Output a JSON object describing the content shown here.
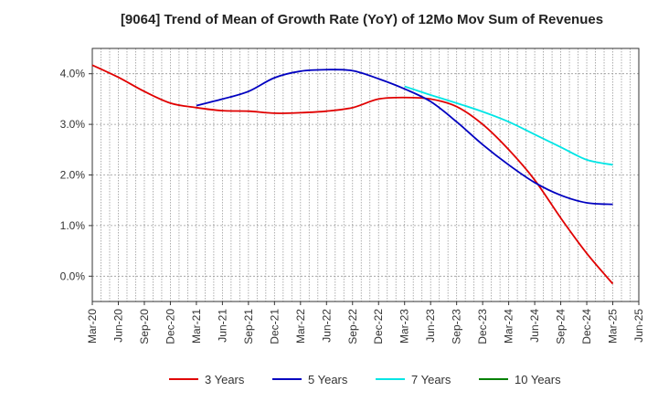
{
  "chart_data": {
    "type": "line",
    "title": "[9064]  Trend of Mean of Growth Rate (YoY) of 12Mo Mov Sum of Revenues",
    "xlabel": "",
    "ylabel": "",
    "ylim": [
      -0.5,
      4.5
    ],
    "yticks": [
      0.0,
      1.0,
      2.0,
      3.0,
      4.0
    ],
    "ytick_labels": [
      "0.0%",
      "1.0%",
      "2.0%",
      "3.0%",
      "4.0%"
    ],
    "xtick_labels": [
      "Mar-20",
      "Jun-20",
      "Sep-20",
      "Dec-20",
      "Mar-21",
      "Jun-21",
      "Sep-21",
      "Dec-21",
      "Mar-22",
      "Jun-22",
      "Sep-22",
      "Dec-22",
      "Mar-23",
      "Jun-23",
      "Sep-23",
      "Dec-23",
      "Mar-24",
      "Jun-24",
      "Sep-24",
      "Dec-24",
      "Mar-25",
      "Jun-25"
    ],
    "grid": true,
    "legend_position": "bottom",
    "series": [
      {
        "name": "3 Years",
        "color": "#e00000",
        "points": [
          [
            0,
            4.17
          ],
          [
            1,
            3.93
          ],
          [
            2,
            3.65
          ],
          [
            3,
            3.42
          ],
          [
            4,
            3.33
          ],
          [
            5,
            3.27
          ],
          [
            6,
            3.26
          ],
          [
            7,
            3.22
          ],
          [
            8,
            3.23
          ],
          [
            9,
            3.26
          ],
          [
            10,
            3.33
          ],
          [
            11,
            3.5
          ],
          [
            12,
            3.53
          ],
          [
            13,
            3.5
          ],
          [
            14,
            3.35
          ],
          [
            15,
            3.0
          ],
          [
            16,
            2.5
          ],
          [
            17,
            1.9
          ],
          [
            18,
            1.15
          ],
          [
            19,
            0.45
          ],
          [
            20,
            -0.15
          ]
        ]
      },
      {
        "name": "5 Years",
        "color": "#0000c0",
        "points": [
          [
            4,
            3.37
          ],
          [
            5,
            3.5
          ],
          [
            6,
            3.65
          ],
          [
            7,
            3.92
          ],
          [
            8,
            4.05
          ],
          [
            9,
            4.08
          ],
          [
            10,
            4.06
          ],
          [
            11,
            3.9
          ],
          [
            12,
            3.7
          ],
          [
            13,
            3.45
          ],
          [
            14,
            3.05
          ],
          [
            15,
            2.6
          ],
          [
            16,
            2.2
          ],
          [
            17,
            1.85
          ],
          [
            18,
            1.6
          ],
          [
            19,
            1.45
          ],
          [
            20,
            1.42
          ]
        ]
      },
      {
        "name": "7 Years",
        "color": "#00e5e5",
        "points": [
          [
            12,
            3.75
          ],
          [
            13,
            3.58
          ],
          [
            14,
            3.42
          ],
          [
            15,
            3.25
          ],
          [
            16,
            3.05
          ],
          [
            17,
            2.8
          ],
          [
            18,
            2.55
          ],
          [
            19,
            2.3
          ],
          [
            20,
            2.2
          ]
        ]
      },
      {
        "name": "10 Years",
        "color": "#008000",
        "points": []
      }
    ]
  }
}
